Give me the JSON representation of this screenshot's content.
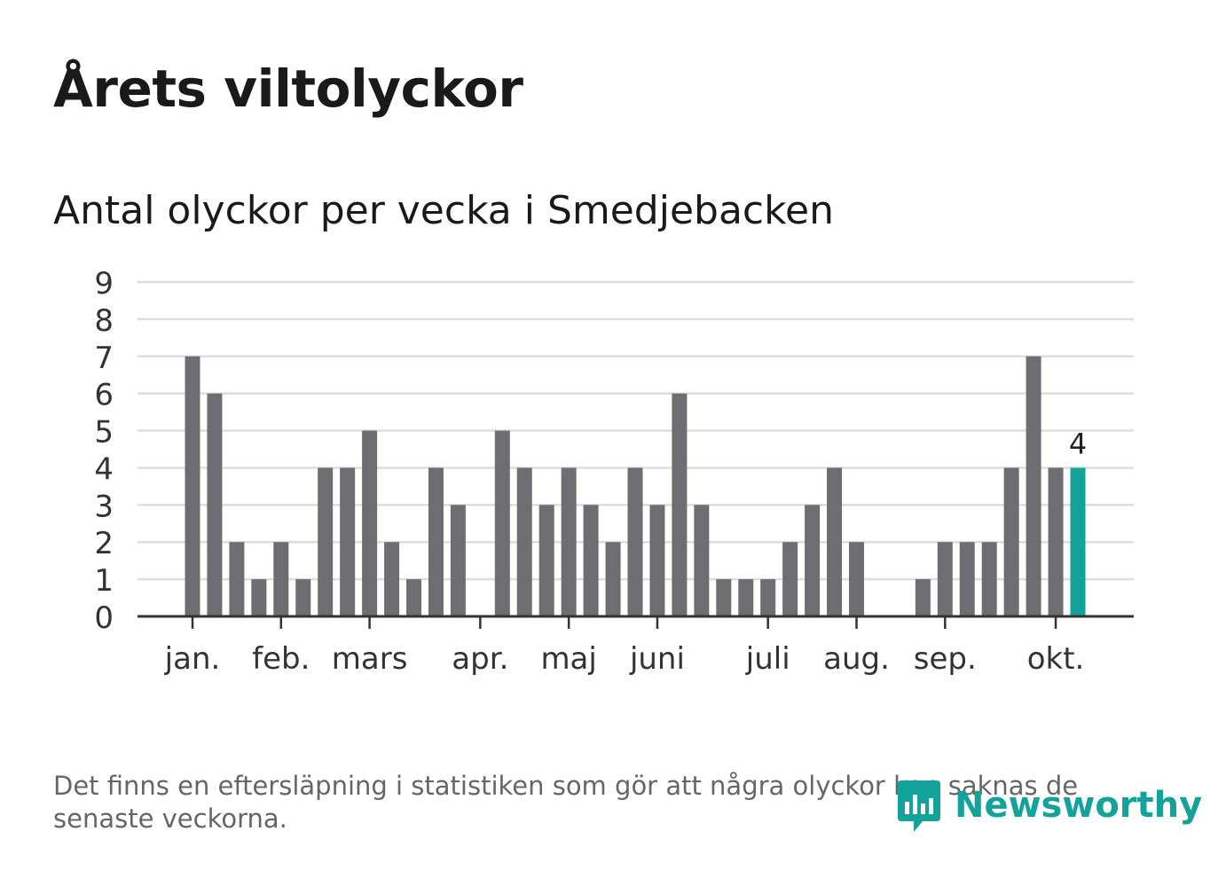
{
  "title": "Årets viltolyckor",
  "subtitle": "Antal olyckor per vecka i Smedjebacken",
  "footnote": "Det finns en eftersläpning i statistiken som gör att några olyckor kan saknas de senaste veckorna.",
  "logo": {
    "name": "Newsworthy",
    "icon": "newsworthy-logo-icon",
    "color": "#14a39b"
  },
  "colors": {
    "bar": "#6e6d72",
    "highlight": "#14a39b",
    "grid": "#dddddd",
    "axis": "#333333",
    "label": "#333333"
  },
  "chart_data": {
    "type": "bar",
    "title": "Antal olyckor per vecka i Smedjebacken",
    "xlabel": "",
    "ylabel": "",
    "ylim": [
      0,
      9
    ],
    "yticks": [
      0,
      1,
      2,
      3,
      4,
      5,
      6,
      7,
      8,
      9
    ],
    "grid": true,
    "weeks": [
      1,
      2,
      3,
      4,
      5,
      6,
      7,
      8,
      9,
      10,
      11,
      12,
      13,
      14,
      15,
      16,
      17,
      18,
      19,
      20,
      21,
      22,
      23,
      24,
      25,
      26,
      27,
      28,
      29,
      30,
      31,
      32,
      33,
      34,
      35,
      36,
      37,
      38,
      39,
      40,
      41
    ],
    "values": [
      7,
      6,
      2,
      1,
      2,
      1,
      4,
      4,
      5,
      2,
      1,
      4,
      3,
      0,
      5,
      4,
      3,
      4,
      3,
      2,
      4,
      3,
      6,
      3,
      1,
      1,
      1,
      2,
      3,
      4,
      2,
      0,
      0,
      1,
      2,
      2,
      2,
      4,
      7,
      4,
      4
    ],
    "highlight_index": 40,
    "highlight_label": "4",
    "month_ticks": [
      {
        "label": "jan.",
        "week": 1
      },
      {
        "label": "feb.",
        "week": 5
      },
      {
        "label": "mars",
        "week": 9
      },
      {
        "label": "apr.",
        "week": 14
      },
      {
        "label": "maj",
        "week": 18
      },
      {
        "label": "juni",
        "week": 22
      },
      {
        "label": "juli",
        "week": 27
      },
      {
        "label": "aug.",
        "week": 31
      },
      {
        "label": "sep.",
        "week": 35
      },
      {
        "label": "okt.",
        "week": 40
      }
    ]
  }
}
